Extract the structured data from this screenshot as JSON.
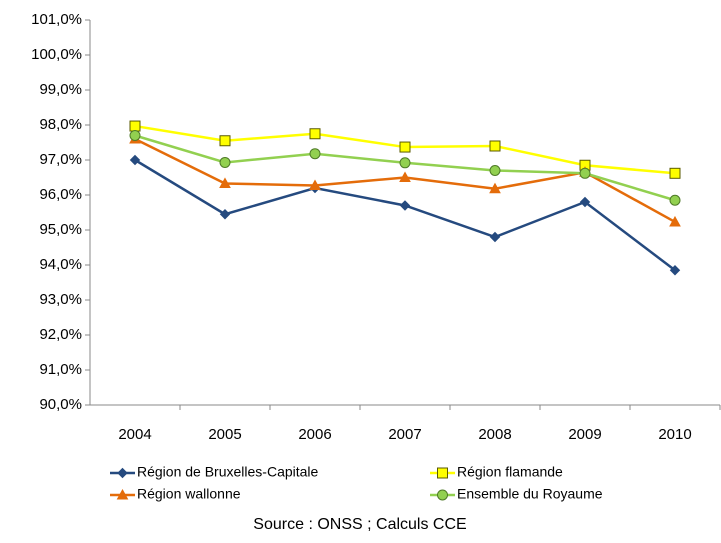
{
  "chart_data": {
    "type": "line",
    "categories": [
      "2004",
      "2005",
      "2006",
      "2007",
      "2008",
      "2009",
      "2010"
    ],
    "series": [
      {
        "name": "Région de Bruxelles-Capitale",
        "color": "#254a7f",
        "marker": "diamond",
        "values": [
          97.0,
          95.45,
          96.2,
          95.7,
          94.8,
          95.8,
          93.85
        ]
      },
      {
        "name": "Région flamande",
        "color": "#ffff00",
        "marker": "square",
        "values": [
          97.97,
          97.55,
          97.75,
          97.37,
          97.4,
          96.85,
          96.62
        ]
      },
      {
        "name": "Région wallonne",
        "color": "#e46c0a",
        "marker": "triangle",
        "values": [
          97.6,
          96.33,
          96.27,
          96.5,
          96.18,
          96.65,
          95.23
        ]
      },
      {
        "name": "Ensemble du Royaume",
        "color": "#92d050",
        "marker": "circle",
        "values": [
          97.7,
          96.93,
          97.18,
          96.92,
          96.7,
          96.62,
          95.85
        ]
      }
    ],
    "ylim": [
      90,
      101
    ],
    "yticks": [
      {
        "value": 90,
        "label": "90,0%"
      },
      {
        "value": 91,
        "label": "91,0%"
      },
      {
        "value": 92,
        "label": "92,0%"
      },
      {
        "value": 93,
        "label": "93,0%"
      },
      {
        "value": 94,
        "label": "94,0%"
      },
      {
        "value": 95,
        "label": "95,0%"
      },
      {
        "value": 96,
        "label": "96,0%"
      },
      {
        "value": 97,
        "label": "97,0%"
      },
      {
        "value": 98,
        "label": "98,0%"
      },
      {
        "value": 99,
        "label": "99,0%"
      },
      {
        "value": 100,
        "label": "100,0%"
      },
      {
        "value": 101,
        "label": "101,0%"
      }
    ],
    "grid": false,
    "legend": "bottom",
    "source": "Source : ONSS ; Calculs CCE"
  }
}
